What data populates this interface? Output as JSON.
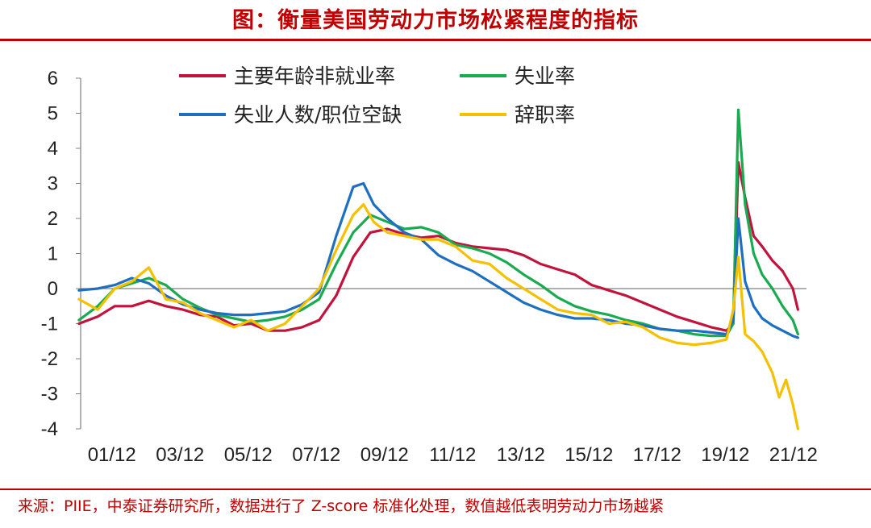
{
  "title": "图：衡量美国劳动力市场松紧程度的指标",
  "source": "来源：PIIE，中泰证券研究所，数据进行了 Z-score 标准化处理，数值越低表明劳动力市场越紧",
  "colors": {
    "accent": "#c00000",
    "prime_age_rate": "#c0143c",
    "unemployment_rate": "#1aaa50",
    "unemployed_per_opening": "#1f6fc0",
    "quits_rate": "#f5c000"
  },
  "chart_data": {
    "type": "line",
    "title": "",
    "xlabel": "",
    "ylabel": "",
    "x_ticks": [
      "01/12",
      "03/12",
      "05/12",
      "07/12",
      "09/12",
      "11/12",
      "13/12",
      "15/12",
      "17/12",
      "19/12",
      "21/12"
    ],
    "y_ticks": [
      6,
      5,
      4,
      3,
      2,
      1,
      0,
      -1,
      -2,
      -3,
      -4
    ],
    "xlim": [
      2001.0,
      2022.3
    ],
    "ylim": [
      -4,
      6
    ],
    "grid": false,
    "legend_position": "top",
    "series": [
      {
        "name": "主要年龄非就业率",
        "color": "#c0143c",
        "x": [
          2000.95,
          2001.5,
          2002.0,
          2002.5,
          2003.0,
          2003.5,
          2004.0,
          2004.5,
          2005.0,
          2005.5,
          2006.0,
          2006.5,
          2007.0,
          2007.5,
          2008.0,
          2008.5,
          2009.0,
          2009.5,
          2010.0,
          2010.5,
          2011.0,
          2011.5,
          2012.0,
          2012.5,
          2013.0,
          2013.5,
          2014.0,
          2014.5,
          2015.0,
          2015.5,
          2016.0,
          2016.5,
          2017.0,
          2017.5,
          2018.0,
          2018.5,
          2019.0,
          2019.5,
          2019.95,
          2020.15,
          2020.3,
          2020.5,
          2020.75,
          2021.0,
          2021.3,
          2021.6,
          2021.9,
          2022.05
        ],
        "y": [
          -1.0,
          -0.8,
          -0.5,
          -0.5,
          -0.35,
          -0.5,
          -0.6,
          -0.75,
          -0.8,
          -1.05,
          -1.0,
          -1.2,
          -1.2,
          -1.1,
          -0.9,
          -0.2,
          0.9,
          1.6,
          1.7,
          1.55,
          1.45,
          1.5,
          1.3,
          1.2,
          1.15,
          1.1,
          0.95,
          0.7,
          0.55,
          0.4,
          0.1,
          -0.05,
          -0.2,
          -0.4,
          -0.6,
          -0.8,
          -0.95,
          -1.1,
          -1.2,
          -1.0,
          3.6,
          2.6,
          1.5,
          1.2,
          0.8,
          0.5,
          0.0,
          -0.6
        ]
      },
      {
        "name": "失业率",
        "color": "#1aaa50",
        "x": [
          2000.95,
          2001.5,
          2002.0,
          2002.5,
          2003.0,
          2003.5,
          2004.0,
          2004.5,
          2005.0,
          2005.5,
          2006.0,
          2006.5,
          2007.0,
          2007.5,
          2008.0,
          2008.5,
          2009.0,
          2009.5,
          2010.0,
          2010.5,
          2011.0,
          2011.5,
          2012.0,
          2012.5,
          2013.0,
          2013.5,
          2014.0,
          2014.5,
          2015.0,
          2015.5,
          2016.0,
          2016.5,
          2017.0,
          2017.5,
          2018.0,
          2018.5,
          2019.0,
          2019.5,
          2019.95,
          2020.15,
          2020.3,
          2020.5,
          2020.75,
          2021.0,
          2021.3,
          2021.6,
          2021.9,
          2022.05
        ],
        "y": [
          -0.9,
          -0.5,
          0.0,
          0.15,
          0.3,
          0.1,
          -0.3,
          -0.55,
          -0.75,
          -0.85,
          -0.95,
          -0.9,
          -0.8,
          -0.6,
          -0.3,
          0.7,
          1.6,
          2.1,
          1.9,
          1.7,
          1.75,
          1.6,
          1.25,
          1.15,
          1.0,
          0.75,
          0.4,
          0.1,
          -0.25,
          -0.5,
          -0.65,
          -0.75,
          -0.9,
          -1.0,
          -1.15,
          -1.2,
          -1.3,
          -1.35,
          -1.35,
          -1.0,
          5.1,
          2.4,
          1.0,
          0.4,
          0.0,
          -0.5,
          -0.9,
          -1.3
        ]
      },
      {
        "name": "失业人数/职位空缺",
        "color": "#1f6fc0",
        "x": [
          2000.95,
          2001.5,
          2002.0,
          2002.5,
          2003.0,
          2003.5,
          2004.0,
          2004.5,
          2005.0,
          2005.5,
          2006.0,
          2006.5,
          2007.0,
          2007.5,
          2008.0,
          2008.5,
          2009.0,
          2009.3,
          2009.6,
          2010.0,
          2010.5,
          2011.0,
          2011.5,
          2012.0,
          2012.5,
          2013.0,
          2013.5,
          2014.0,
          2014.5,
          2015.0,
          2015.5,
          2016.0,
          2016.5,
          2017.0,
          2017.5,
          2018.0,
          2018.5,
          2019.0,
          2019.5,
          2019.95,
          2020.15,
          2020.3,
          2020.5,
          2020.75,
          2021.0,
          2021.3,
          2021.6,
          2021.9,
          2022.05
        ],
        "y": [
          -0.05,
          0.0,
          0.1,
          0.3,
          0.15,
          -0.2,
          -0.45,
          -0.6,
          -0.7,
          -0.75,
          -0.75,
          -0.7,
          -0.65,
          -0.45,
          -0.1,
          1.5,
          2.9,
          3.0,
          2.4,
          2.0,
          1.6,
          1.4,
          0.95,
          0.7,
          0.5,
          0.2,
          -0.1,
          -0.4,
          -0.6,
          -0.75,
          -0.85,
          -0.85,
          -0.9,
          -1.0,
          -1.05,
          -1.15,
          -1.2,
          -1.2,
          -1.25,
          -1.3,
          -0.9,
          2.0,
          0.2,
          -0.5,
          -0.85,
          -1.05,
          -1.2,
          -1.35,
          -1.4
        ]
      },
      {
        "name": "辞职率",
        "color": "#f5c000",
        "x": [
          2000.95,
          2001.5,
          2002.0,
          2002.5,
          2003.0,
          2003.5,
          2004.0,
          2004.5,
          2005.0,
          2005.5,
          2006.0,
          2006.5,
          2007.0,
          2007.5,
          2008.0,
          2008.5,
          2009.0,
          2009.3,
          2009.6,
          2010.0,
          2010.5,
          2011.0,
          2011.5,
          2012.0,
          2012.5,
          2013.0,
          2013.5,
          2014.0,
          2014.5,
          2015.0,
          2015.5,
          2016.0,
          2016.5,
          2017.0,
          2017.5,
          2018.0,
          2018.5,
          2019.0,
          2019.5,
          2019.95,
          2020.15,
          2020.3,
          2020.5,
          2020.75,
          2021.0,
          2021.3,
          2021.5,
          2021.7,
          2021.9,
          2022.05
        ],
        "y": [
          -0.3,
          -0.6,
          0.0,
          0.2,
          0.6,
          -0.3,
          -0.4,
          -0.7,
          -0.9,
          -1.1,
          -0.9,
          -1.2,
          -1.0,
          -0.5,
          0.0,
          1.1,
          2.1,
          2.4,
          1.9,
          1.6,
          1.5,
          1.4,
          1.4,
          1.2,
          0.8,
          0.7,
          0.3,
          0.0,
          -0.3,
          -0.6,
          -0.7,
          -0.75,
          -1.0,
          -0.95,
          -1.1,
          -1.4,
          -1.55,
          -1.6,
          -1.55,
          -1.45,
          -0.6,
          0.9,
          -1.3,
          -1.5,
          -1.8,
          -2.4,
          -3.1,
          -2.6,
          -3.3,
          -4.0
        ]
      }
    ]
  }
}
